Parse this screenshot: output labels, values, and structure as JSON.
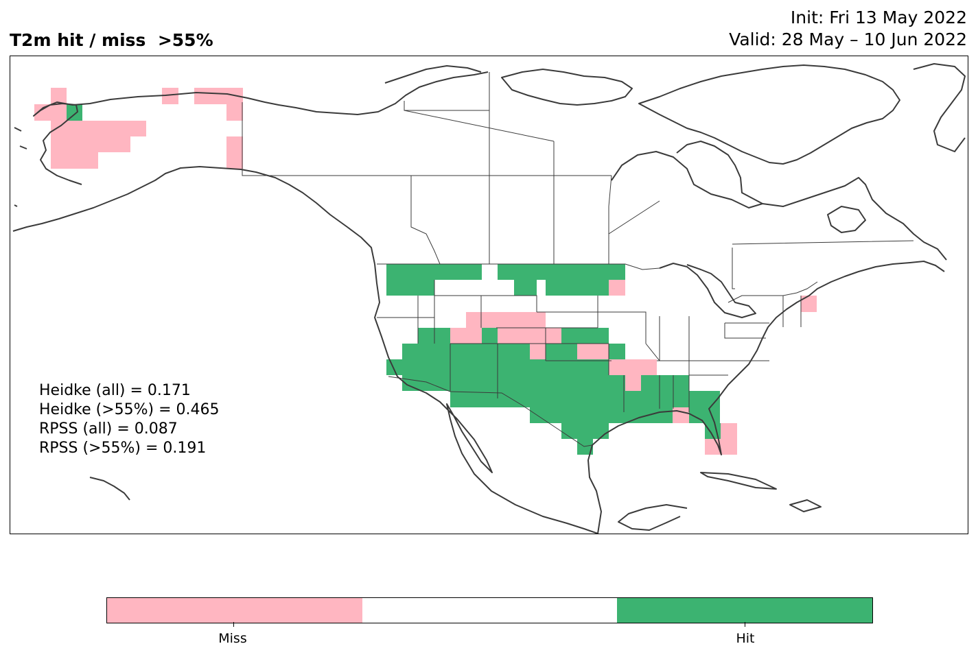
{
  "header": {
    "title": "T2m hit / miss  >55%",
    "init": "Init: Fri 13 May 2022",
    "valid": "Valid: 28 May – 10 Jun 2022"
  },
  "stats": {
    "heidke_all": "Heidke (all) = 0.171",
    "heidke_55": "Heidke (>55%) = 0.465",
    "rpss_all": "RPSS (all) = 0.087",
    "rpss_55": "RPSS (>55%) = 0.191"
  },
  "legend": {
    "miss_label": "Miss",
    "hit_label": "Hit"
  },
  "colors": {
    "miss": "#ffb6c1",
    "neutral": "#ffffff",
    "hit": "#3cb371",
    "coast": "#3a3a3a"
  }
}
